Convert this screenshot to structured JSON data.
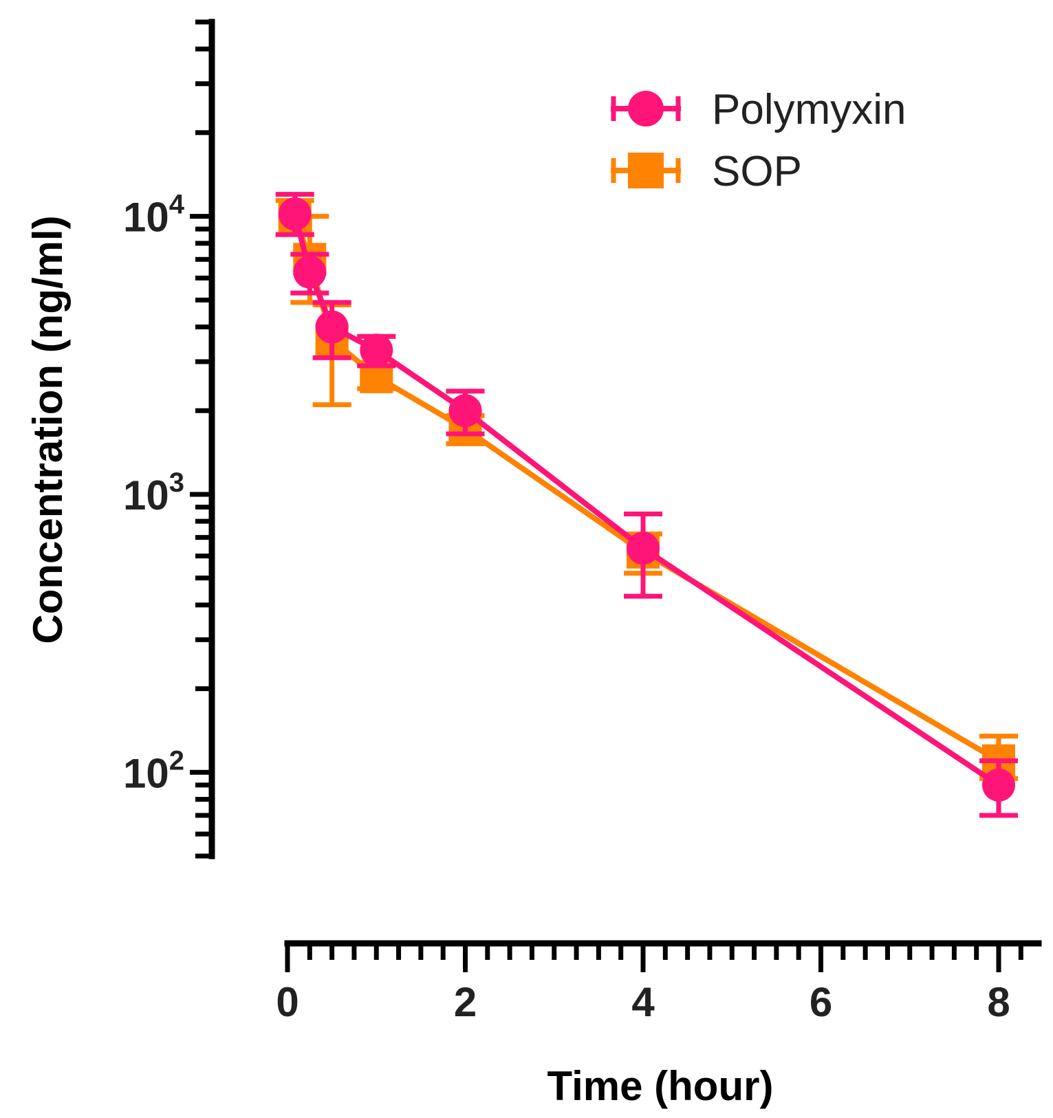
{
  "chart_data": {
    "type": "line",
    "title": "",
    "xlabel": "Time (hour)",
    "ylabel": "Concentration (ng/ml)",
    "x_scale": "linear",
    "y_scale": "log",
    "xlim": [
      0,
      8.25
    ],
    "ylim": [
      50,
      50000
    ],
    "x_ticks": [
      0,
      2,
      4,
      6,
      8
    ],
    "x_tick_labels": [
      "0",
      "2",
      "4",
      "6",
      "8"
    ],
    "y_ticks": [
      100,
      1000,
      10000
    ],
    "y_tick_labels": [
      {
        "base": "10",
        "exp": "2"
      },
      {
        "base": "10",
        "exp": "3"
      },
      {
        "base": "10",
        "exp": "4"
      }
    ],
    "legend_position": "top-right",
    "grid": false,
    "series": [
      {
        "name": "SOP",
        "color": "#FF8200",
        "marker": "square",
        "x": [
          0.083,
          0.25,
          0.5,
          1,
          2,
          4,
          8
        ],
        "y": [
          10000,
          7000,
          3600,
          2650,
          1720,
          620,
          110
        ],
        "err_low": [
          8600,
          4900,
          2100,
          2400,
          1520,
          520,
          95
        ],
        "err_high": [
          11400,
          10000,
          4800,
          2900,
          1920,
          720,
          135
        ]
      },
      {
        "name": "Polymyxin",
        "color": "#FF1478",
        "marker": "circle",
        "x": [
          0.083,
          0.25,
          0.5,
          1,
          2,
          4,
          8
        ],
        "y": [
          10200,
          6300,
          4000,
          3300,
          2000,
          640,
          90
        ],
        "err_low": [
          8600,
          5300,
          3100,
          2900,
          1650,
          430,
          70
        ],
        "err_high": [
          12000,
          7300,
          4900,
          3700,
          2350,
          850,
          110
        ]
      }
    ]
  }
}
